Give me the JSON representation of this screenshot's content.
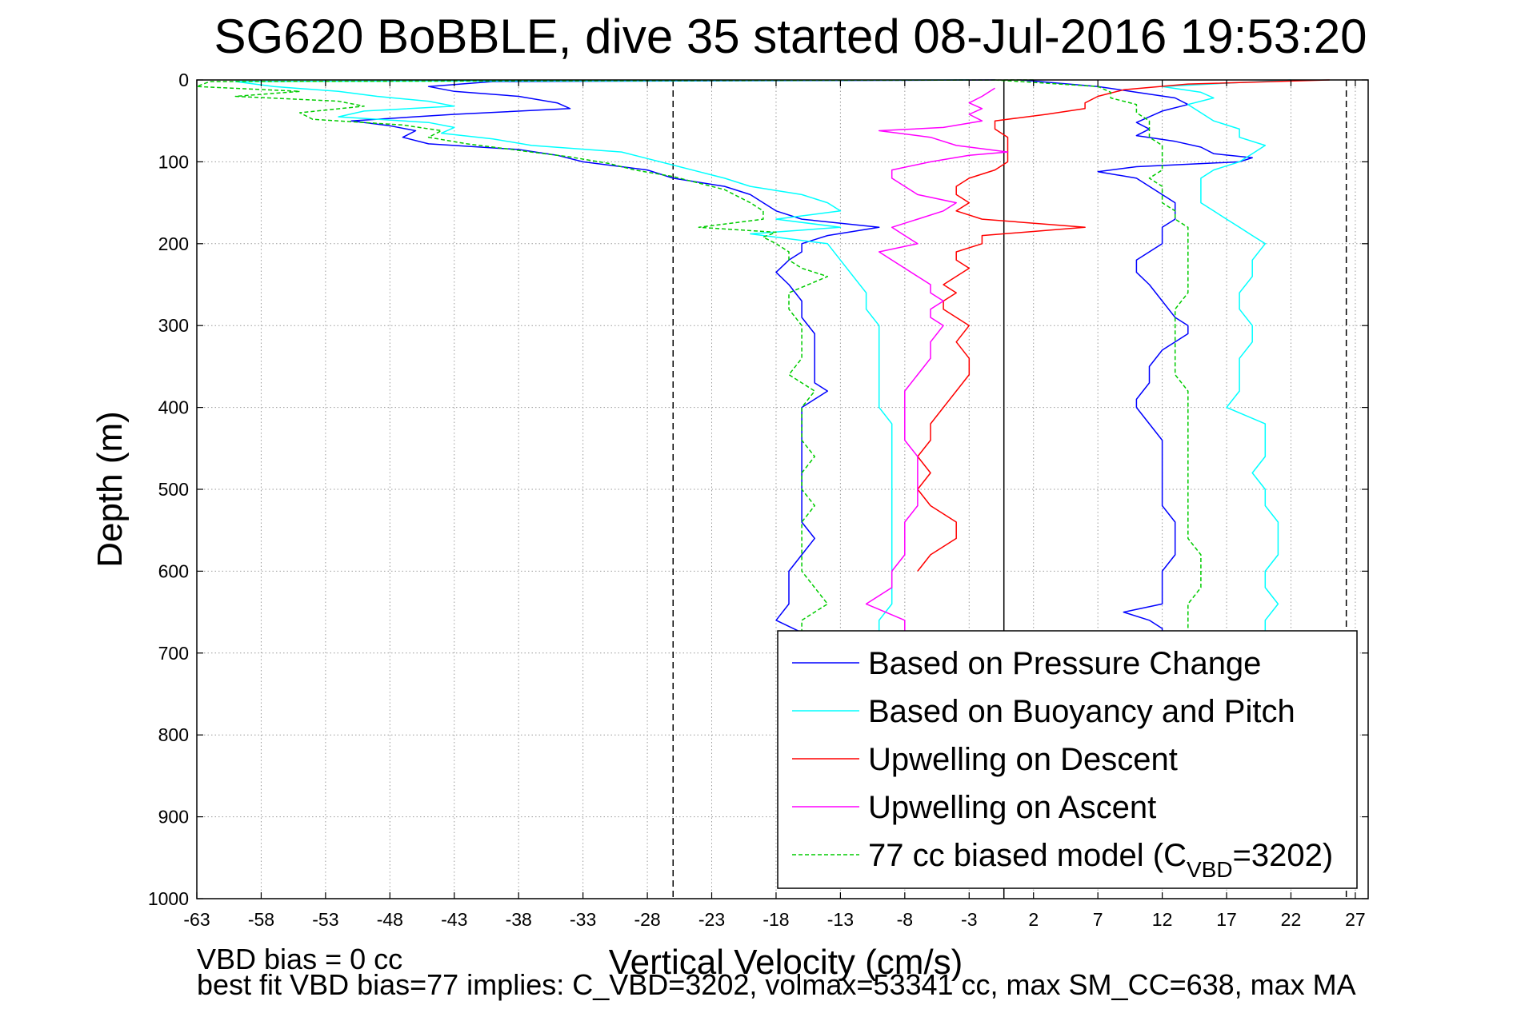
{
  "chart_data": {
    "type": "line",
    "title": "SG620 BoBBLE, dive 35 started 08-Jul-2016 19:53:20",
    "xlabel": "Vertical Velocity (cm/s)",
    "ylabel": "Depth (m)",
    "xlim": [
      -63,
      28
    ],
    "ylim": [
      1000,
      0
    ],
    "y_reversed": true,
    "xticks": [
      -63,
      -58,
      -53,
      -48,
      -43,
      -38,
      -33,
      -28,
      -23,
      -18,
      -13,
      -8,
      -3,
      2,
      7,
      12,
      17,
      22,
      27
    ],
    "xtick_labels": [
      "-63",
      "-58",
      "-53",
      "-48",
      "-43",
      "-38",
      "-33",
      "-28",
      "-23",
      "-18",
      "-13",
      "-8",
      "-3",
      "2",
      "7",
      "12",
      "17",
      "22",
      "27"
    ],
    "yticks": [
      0,
      100,
      200,
      300,
      400,
      500,
      600,
      700,
      800,
      900,
      1000
    ],
    "ytick_labels": [
      "0",
      "100",
      "200",
      "300",
      "400",
      "500",
      "600",
      "700",
      "800",
      "900",
      "1000"
    ],
    "grid": true,
    "legend_position": "bottom-right",
    "vertical_lines": [
      {
        "x": -26,
        "style": "dashed",
        "color": "#000000"
      },
      {
        "x": -0.3,
        "style": "solid",
        "color": "#000000"
      },
      {
        "x": 26.3,
        "style": "dashed",
        "color": "#000000"
      }
    ],
    "series": [
      {
        "name": "Based on Pressure Change",
        "color": "#0000ff",
        "style": "solid",
        "segments": [
          {
            "y": [
              0,
              2,
              8,
              14,
              20,
              28,
              35,
              42,
              50,
              56,
              62,
              70,
              78,
              85,
              92,
              100,
              110,
              120,
              130,
              140,
              150,
              160,
              170,
              180,
              190,
              200,
              210,
              220,
              235,
              250,
              270,
              290,
              310,
              330,
              350,
              370,
              380,
              400,
              420,
              440,
              460,
              480,
              500,
              520,
              540,
              560,
              580,
              600,
              620,
              640,
              660,
              675
            ],
            "x": [
              -1,
              -40,
              -45,
              -43,
              -38,
              -35,
              -34,
              -43,
              -51,
              -48,
              -46,
              -47,
              -45,
              -38,
              -35,
              -33,
              -28,
              -26,
              -22,
              -20,
              -19,
              -18,
              -16,
              -10,
              -14,
              -16,
              -16,
              -17,
              -18,
              -17,
              -16,
              -16,
              -15,
              -15,
              -15,
              -15,
              -14,
              -16,
              -16,
              -16,
              -16,
              -16,
              -16,
              -16,
              -16,
              -15,
              -16,
              -17,
              -17,
              -17,
              -18,
              -16
            ]
          },
          {
            "y": [
              0,
              8,
              15,
              22,
              30,
              38,
              45,
              52,
              60,
              68,
              75,
              82,
              90,
              95,
              100,
              106,
              112,
              120,
              130,
              140,
              150,
              160,
              170,
              180,
              190,
              200,
              210,
              220,
              235,
              250,
              270,
              290,
              300,
              310,
              330,
              350,
              370,
              390,
              400,
              420,
              440,
              460,
              480,
              500,
              520,
              540,
              560,
              580,
              600,
              620,
              640,
              650,
              660,
              670,
              675
            ],
            "x": [
              1,
              7,
              10,
              13,
              14,
              12,
              11,
              10,
              11,
              10,
              13,
              15,
              16,
              19,
              18,
              10,
              7,
              10,
              11,
              12,
              13,
              13,
              13,
              12,
              12,
              12,
              11,
              10,
              10,
              11,
              12,
              13,
              14,
              14,
              12,
              11,
              11,
              10,
              10,
              11,
              12,
              12,
              12,
              12,
              12,
              13,
              13,
              13,
              12,
              12,
              12,
              9,
              11,
              12,
              12
            ]
          }
        ]
      },
      {
        "name": "Based on Buoyancy and Pitch",
        "color": "#00ffff",
        "style": "solid",
        "segments": [
          {
            "y": [
              0,
              2,
              8,
              14,
              20,
              26,
              32,
              38,
              45,
              52,
              58,
              65,
              72,
              80,
              88,
              96,
              104,
              112,
              120,
              130,
              140,
              150,
              160,
              170,
              180,
              188,
              200,
              220,
              240,
              260,
              280,
              300,
              320,
              340,
              360,
              380,
              400,
              420,
              440,
              460,
              480,
              500,
              520,
              540,
              560,
              580,
              600,
              620,
              640,
              660,
              675
            ],
            "x": [
              -3,
              -60,
              -57,
              -52,
              -49,
              -45,
              -43,
              -50,
              -52,
              -45,
              -43,
              -44,
              -40,
              -37,
              -30,
              -28,
              -26,
              -24,
              -22,
              -20,
              -16,
              -14,
              -13,
              -18,
              -13,
              -20,
              -14,
              -13,
              -12,
              -11,
              -11,
              -10,
              -10,
              -10,
              -10,
              -10,
              -10,
              -9,
              -9,
              -9,
              -9,
              -9,
              -9,
              -9,
              -9,
              -9,
              -9,
              -9,
              -9,
              -10,
              -10
            ]
          },
          {
            "y": [
              0,
              8,
              15,
              22,
              30,
              40,
              50,
              60,
              70,
              80,
              90,
              100,
              110,
              120,
              130,
              140,
              150,
              160,
              170,
              180,
              190,
              200,
              220,
              240,
              260,
              280,
              300,
              320,
              340,
              360,
              380,
              400,
              420,
              440,
              460,
              480,
              500,
              520,
              540,
              560,
              580,
              600,
              620,
              640,
              660,
              675
            ],
            "x": [
              22,
              12,
              15,
              16,
              14,
              15,
              16,
              18,
              18,
              20,
              19,
              18,
              16,
              15,
              15,
              15,
              15,
              16,
              17,
              18,
              19,
              20,
              19,
              19,
              18,
              18,
              19,
              19,
              18,
              18,
              18,
              17,
              20,
              20,
              20,
              19,
              20,
              20,
              21,
              21,
              21,
              20,
              20,
              21,
              20,
              20
            ]
          }
        ]
      },
      {
        "name": "Upwelling on Descent",
        "color": "#ff0000",
        "style": "solid",
        "segments": [
          {
            "y": [
              0,
              5,
              12,
              20,
              28,
              35,
              42,
              50,
              60,
              70,
              80,
              90,
              100,
              110,
              120,
              130,
              140,
              150,
              160,
              170,
              180,
              190,
              200,
              210,
              220,
              230,
              240,
              250,
              260,
              270,
              280,
              290,
              300,
              320,
              340,
              360,
              380,
              400,
              420,
              440,
              460,
              480,
              500,
              520,
              540,
              560,
              580,
              600
            ],
            "x": [
              25,
              14,
              9,
              7,
              6,
              6,
              3,
              -1,
              -1,
              0,
              0,
              0,
              0,
              -1,
              -3,
              -4,
              -4,
              -3,
              -4,
              -2,
              6,
              -2,
              -2,
              -4,
              -4,
              -3,
              -4,
              -5,
              -4,
              -5,
              -5,
              -4,
              -3,
              -4,
              -3,
              -3,
              -4,
              -5,
              -6,
              -6,
              -7,
              -6,
              -7,
              -6,
              -4,
              -4,
              -6,
              -7
            ]
          }
        ]
      },
      {
        "name": "Upwelling on Ascent",
        "color": "#ff00ff",
        "style": "solid",
        "segments": [
          {
            "y": [
              10,
              20,
              28,
              35,
              42,
              50,
              58,
              62,
              70,
              80,
              88,
              92,
              100,
              110,
              120,
              130,
              140,
              150,
              160,
              170,
              180,
              190,
              200,
              210,
              220,
              230,
              240,
              250,
              260,
              270,
              280,
              290,
              300,
              320,
              340,
              360,
              380,
              400,
              420,
              440,
              460,
              480,
              500,
              520,
              540,
              560,
              580,
              600,
              620,
              640,
              660,
              675
            ],
            "x": [
              -1,
              -2,
              -3,
              -2,
              -3,
              -2,
              -5,
              -10,
              -6,
              -4,
              0,
              -3,
              -6,
              -9,
              -9,
              -8,
              -7,
              -4,
              -5,
              -7,
              -9,
              -8,
              -7,
              -10,
              -9,
              -8,
              -7,
              -6,
              -6,
              -5,
              -6,
              -6,
              -5,
              -6,
              -6,
              -7,
              -8,
              -8,
              -8,
              -8,
              -7,
              -7,
              -7,
              -7,
              -8,
              -8,
              -8,
              -9,
              -9,
              -11,
              -8,
              -8
            ]
          }
        ]
      },
      {
        "name": "77 cc biased model (C_VBD=3202)",
        "color": "#00cc00",
        "style": "dashed",
        "segments": [
          {
            "y": [
              0,
              2,
              8,
              14,
              20,
              26,
              32,
              40,
              48,
              55,
              62,
              70,
              78,
              86,
              94,
              102,
              110,
              118,
              126,
              134,
              142,
              150,
              160,
              170,
              180,
              186,
              192,
              200,
              210,
              220,
              230,
              240,
              260,
              280,
              300,
              320,
              340,
              360,
              380,
              400,
              420,
              440,
              460,
              480,
              500,
              520,
              540,
              560,
              580,
              600,
              620,
              640,
              660,
              675
            ],
            "x": [
              2,
              -62,
              -63,
              -55,
              -60,
              -52,
              -50,
              -55,
              -54,
              -47,
              -44,
              -45,
              -42,
              -38,
              -34,
              -31,
              -29,
              -26,
              -24,
              -22,
              -21,
              -20,
              -19,
              -19,
              -24,
              -18,
              -19,
              -18,
              -17,
              -17,
              -16,
              -14,
              -17,
              -17,
              -16,
              -16,
              -16,
              -17,
              -15,
              -16,
              -16,
              -16,
              -15,
              -16,
              -16,
              -15,
              -16,
              -16,
              -16,
              -16,
              -15,
              -14,
              -16,
              -16
            ]
          },
          {
            "y": [
              0,
              8,
              15,
              22,
              30,
              40,
              50,
              60,
              70,
              80,
              90,
              100,
              110,
              120,
              130,
              140,
              150,
              160,
              170,
              180,
              190,
              200,
              220,
              240,
              260,
              280,
              300,
              320,
              340,
              360,
              380,
              400,
              420,
              440,
              460,
              480,
              500,
              520,
              540,
              560,
              580,
              600,
              620,
              640,
              660,
              675
            ],
            "x": [
              -1,
              7,
              8,
              8,
              10,
              10,
              11,
              11,
              11,
              12,
              12,
              12,
              12,
              11,
              12,
              12,
              12,
              13,
              13,
              14,
              14,
              14,
              14,
              14,
              14,
              13,
              13,
              13,
              13,
              13,
              14,
              14,
              14,
              14,
              14,
              14,
              14,
              14,
              14,
              14,
              15,
              15,
              15,
              14,
              14,
              14
            ]
          }
        ]
      }
    ],
    "legend": [
      {
        "label": "Based on Pressure Change",
        "color": "#0000ff",
        "style": "solid"
      },
      {
        "label": "Based on Buoyancy and Pitch",
        "color": "#00ffff",
        "style": "solid"
      },
      {
        "label": "Upwelling on Descent",
        "color": "#ff0000",
        "style": "solid"
      },
      {
        "label": "Upwelling on Ascent",
        "color": "#ff00ff",
        "style": "solid"
      },
      {
        "label": "77 cc biased model (C",
        "label_sub": "VBD",
        "label_tail": "=3202)",
        "color": "#00cc00",
        "style": "dashed"
      }
    ],
    "annotations": [
      "VBD bias = 0 cc",
      "best fit VBD bias=77 implies: C_VBD=3202, volmax=53341 cc, max SM_CC=638, max MA"
    ]
  }
}
